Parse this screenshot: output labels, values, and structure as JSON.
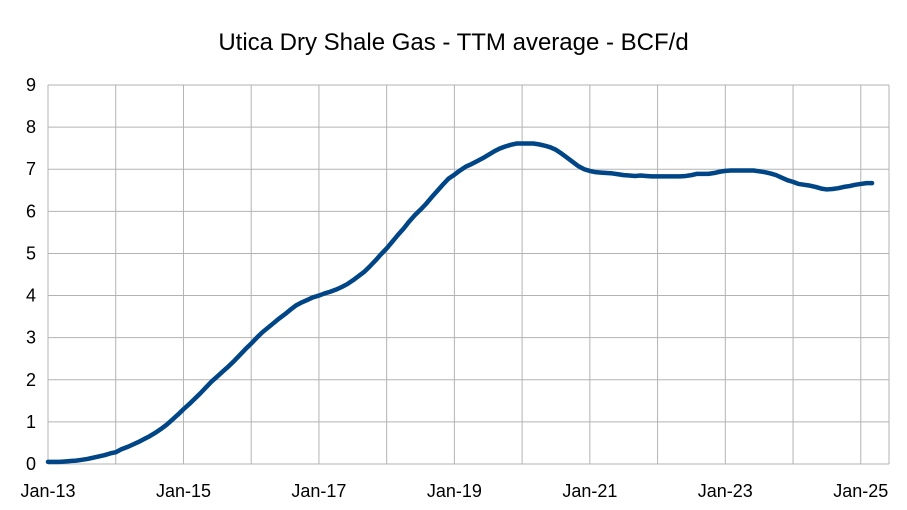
{
  "chart_data": {
    "type": "line",
    "title": "Utica Dry Shale Gas - TTM average - BCF/d",
    "xlabel": "",
    "ylabel": "",
    "ylim": [
      0,
      9
    ],
    "yticks": [
      "0",
      "1",
      "2",
      "3",
      "4",
      "5",
      "6",
      "7",
      "8",
      "9"
    ],
    "xlim": [
      "2013-01",
      "2025-06"
    ],
    "xticks": [
      {
        "label": "Jan-13",
        "date": "2013-01"
      },
      {
        "label": "Jan-15",
        "date": "2015-01"
      },
      {
        "label": "Jan-17",
        "date": "2017-01"
      },
      {
        "label": "Jan-19",
        "date": "2019-01"
      },
      {
        "label": "Jan-21",
        "date": "2021-01"
      },
      {
        "label": "Jan-23",
        "date": "2023-01"
      },
      {
        "label": "Jan-25",
        "date": "2025-01"
      }
    ],
    "grid": true,
    "legend": "none",
    "colors": {
      "series": "#004586",
      "grid": "#b3b3b3"
    },
    "series": [
      {
        "name": "",
        "points": [
          [
            "2013-01",
            0.05
          ],
          [
            "2013-02",
            0.05
          ],
          [
            "2013-03",
            0.05
          ],
          [
            "2013-04",
            0.06
          ],
          [
            "2013-05",
            0.07
          ],
          [
            "2013-06",
            0.08
          ],
          [
            "2013-07",
            0.1
          ],
          [
            "2013-08",
            0.12
          ],
          [
            "2013-09",
            0.15
          ],
          [
            "2013-10",
            0.18
          ],
          [
            "2013-11",
            0.21
          ],
          [
            "2013-12",
            0.25
          ],
          [
            "2014-01",
            0.28
          ],
          [
            "2014-02",
            0.35
          ],
          [
            "2014-03",
            0.4
          ],
          [
            "2014-04",
            0.46
          ],
          [
            "2014-05",
            0.52
          ],
          [
            "2014-06",
            0.59
          ],
          [
            "2014-07",
            0.66
          ],
          [
            "2014-08",
            0.74
          ],
          [
            "2014-09",
            0.83
          ],
          [
            "2014-10",
            0.93
          ],
          [
            "2014-11",
            1.05
          ],
          [
            "2014-12",
            1.17
          ],
          [
            "2015-01",
            1.3
          ],
          [
            "2015-02",
            1.42
          ],
          [
            "2015-03",
            1.55
          ],
          [
            "2015-04",
            1.68
          ],
          [
            "2015-05",
            1.82
          ],
          [
            "2015-06",
            1.96
          ],
          [
            "2015-07",
            2.08
          ],
          [
            "2015-08",
            2.2
          ],
          [
            "2015-09",
            2.32
          ],
          [
            "2015-10",
            2.45
          ],
          [
            "2015-11",
            2.59
          ],
          [
            "2015-12",
            2.73
          ],
          [
            "2016-01",
            2.86
          ],
          [
            "2016-02",
            3.0
          ],
          [
            "2016-03",
            3.13
          ],
          [
            "2016-04",
            3.24
          ],
          [
            "2016-05",
            3.35
          ],
          [
            "2016-06",
            3.46
          ],
          [
            "2016-07",
            3.56
          ],
          [
            "2016-08",
            3.67
          ],
          [
            "2016-09",
            3.77
          ],
          [
            "2016-10",
            3.84
          ],
          [
            "2016-11",
            3.9
          ],
          [
            "2016-12",
            3.96
          ],
          [
            "2017-01",
            4.0
          ],
          [
            "2017-02",
            4.05
          ],
          [
            "2017-03",
            4.09
          ],
          [
            "2017-04",
            4.14
          ],
          [
            "2017-05",
            4.2
          ],
          [
            "2017-06",
            4.27
          ],
          [
            "2017-07",
            4.36
          ],
          [
            "2017-08",
            4.46
          ],
          [
            "2017-09",
            4.56
          ],
          [
            "2017-10",
            4.69
          ],
          [
            "2017-11",
            4.83
          ],
          [
            "2017-12",
            4.98
          ],
          [
            "2018-01",
            5.12
          ],
          [
            "2018-02",
            5.28
          ],
          [
            "2018-03",
            5.44
          ],
          [
            "2018-04",
            5.59
          ],
          [
            "2018-05",
            5.76
          ],
          [
            "2018-06",
            5.91
          ],
          [
            "2018-07",
            6.04
          ],
          [
            "2018-08",
            6.18
          ],
          [
            "2018-09",
            6.34
          ],
          [
            "2018-10",
            6.49
          ],
          [
            "2018-11",
            6.64
          ],
          [
            "2018-12",
            6.78
          ],
          [
            "2019-01",
            6.87
          ],
          [
            "2019-02",
            6.97
          ],
          [
            "2019-03",
            7.06
          ],
          [
            "2019-04",
            7.12
          ],
          [
            "2019-05",
            7.19
          ],
          [
            "2019-06",
            7.26
          ],
          [
            "2019-07",
            7.34
          ],
          [
            "2019-08",
            7.42
          ],
          [
            "2019-09",
            7.49
          ],
          [
            "2019-10",
            7.54
          ],
          [
            "2019-11",
            7.58
          ],
          [
            "2019-12",
            7.61
          ],
          [
            "2020-01",
            7.61
          ],
          [
            "2020-02",
            7.61
          ],
          [
            "2020-03",
            7.61
          ],
          [
            "2020-04",
            7.59
          ],
          [
            "2020-05",
            7.56
          ],
          [
            "2020-06",
            7.52
          ],
          [
            "2020-07",
            7.46
          ],
          [
            "2020-08",
            7.37
          ],
          [
            "2020-09",
            7.27
          ],
          [
            "2020-10",
            7.17
          ],
          [
            "2020-11",
            7.07
          ],
          [
            "2020-12",
            7.0
          ],
          [
            "2021-01",
            6.96
          ],
          [
            "2021-02",
            6.93
          ],
          [
            "2021-03",
            6.92
          ],
          [
            "2021-04",
            6.91
          ],
          [
            "2021-05",
            6.9
          ],
          [
            "2021-06",
            6.88
          ],
          [
            "2021-07",
            6.86
          ],
          [
            "2021-08",
            6.85
          ],
          [
            "2021-09",
            6.84
          ],
          [
            "2021-10",
            6.85
          ],
          [
            "2021-11",
            6.84
          ],
          [
            "2021-12",
            6.83
          ],
          [
            "2022-01",
            6.83
          ],
          [
            "2022-02",
            6.83
          ],
          [
            "2022-03",
            6.83
          ],
          [
            "2022-04",
            6.83
          ],
          [
            "2022-05",
            6.83
          ],
          [
            "2022-06",
            6.84
          ],
          [
            "2022-07",
            6.86
          ],
          [
            "2022-08",
            6.89
          ],
          [
            "2022-09",
            6.89
          ],
          [
            "2022-10",
            6.89
          ],
          [
            "2022-11",
            6.91
          ],
          [
            "2022-12",
            6.94
          ],
          [
            "2023-01",
            6.96
          ],
          [
            "2023-02",
            6.97
          ],
          [
            "2023-03",
            6.97
          ],
          [
            "2023-04",
            6.97
          ],
          [
            "2023-05",
            6.97
          ],
          [
            "2023-06",
            6.97
          ],
          [
            "2023-07",
            6.95
          ],
          [
            "2023-08",
            6.93
          ],
          [
            "2023-09",
            6.9
          ],
          [
            "2023-10",
            6.86
          ],
          [
            "2023-11",
            6.8
          ],
          [
            "2023-12",
            6.74
          ],
          [
            "2024-01",
            6.7
          ],
          [
            "2024-02",
            6.65
          ],
          [
            "2024-03",
            6.63
          ],
          [
            "2024-04",
            6.61
          ],
          [
            "2024-05",
            6.58
          ],
          [
            "2024-06",
            6.54
          ],
          [
            "2024-07",
            6.52
          ],
          [
            "2024-08",
            6.53
          ],
          [
            "2024-09",
            6.55
          ],
          [
            "2024-10",
            6.58
          ],
          [
            "2024-11",
            6.6
          ],
          [
            "2024-12",
            6.63
          ],
          [
            "2025-01",
            6.65
          ],
          [
            "2025-02",
            6.67
          ],
          [
            "2025-03",
            6.67
          ]
        ]
      }
    ]
  }
}
